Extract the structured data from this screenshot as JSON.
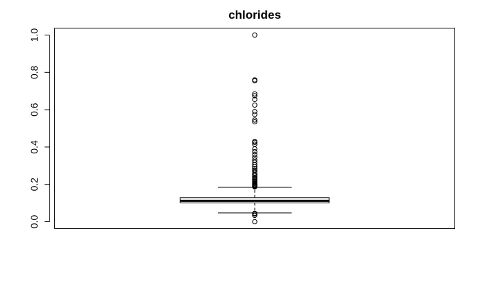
{
  "chart_data": {
    "type": "boxplot",
    "title": "chlorides",
    "xlabel": "",
    "ylabel": "",
    "ylim": [
      -0.03,
      1.03
    ],
    "yticks": [
      0.0,
      0.2,
      0.4,
      0.6,
      0.8,
      1.0
    ],
    "ytick_labels": [
      "0.0",
      "0.2",
      "0.4",
      "0.6",
      "0.8",
      "1.0"
    ],
    "grid": false,
    "box": {
      "whisker_low": 0.047,
      "q1": 0.101,
      "median": 0.112,
      "q3": 0.129,
      "whisker_high": 0.184
    },
    "outliers": [
      0.0,
      0.034,
      0.042,
      0.045,
      0.187,
      0.19,
      0.193,
      0.197,
      0.2,
      0.205,
      0.21,
      0.215,
      0.22,
      0.226,
      0.232,
      0.238,
      0.245,
      0.252,
      0.26,
      0.268,
      0.276,
      0.285,
      0.295,
      0.305,
      0.318,
      0.33,
      0.345,
      0.36,
      0.375,
      0.39,
      0.415,
      0.425,
      0.43,
      0.535,
      0.545,
      0.575,
      0.59,
      0.625,
      0.655,
      0.675,
      0.685,
      0.755,
      0.76,
      1.0
    ]
  }
}
